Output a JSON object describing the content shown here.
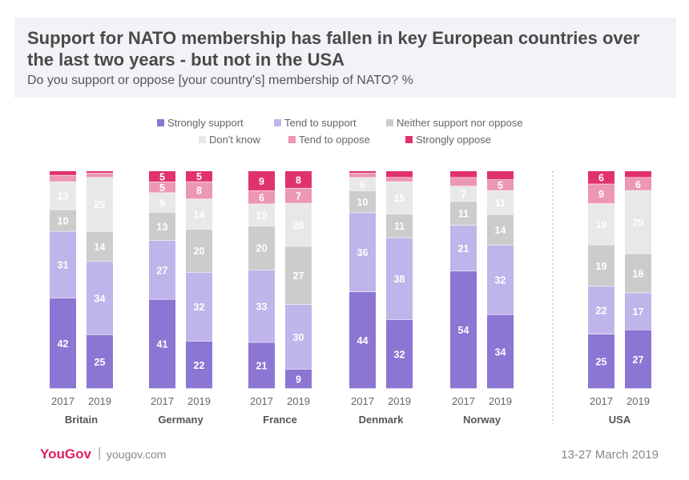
{
  "title": "Support for NATO membership has fallen in key European countries over the last two years - but not in the USA",
  "subtitle": "Do you support or oppose [your country's] membership of NATO? %",
  "legend": [
    {
      "label": "Strongly support",
      "color": "#8b76d4"
    },
    {
      "label": "Tend to support",
      "color": "#c0b5ea"
    },
    {
      "label": "Neither support nor oppose",
      "color": "#cccccc"
    },
    {
      "label": "Don't know",
      "color": "#e8e8e8"
    },
    {
      "label": "Tend to oppose",
      "color": "#ec97b6"
    },
    {
      "label": "Strongly oppose",
      "color": "#e0336b"
    }
  ],
  "footer": {
    "logo": "YouGov",
    "separator": "|",
    "site": "yougov.com",
    "date": "13-27 March 2019"
  },
  "chart_data": {
    "type": "bar",
    "stacked": true,
    "unit": "%",
    "categories": [
      "Strongly support",
      "Tend to support",
      "Neither support nor oppose",
      "Don't know",
      "Tend to oppose",
      "Strongly oppose"
    ],
    "groups": [
      {
        "country": "Britain",
        "bars": [
          {
            "year": "2017",
            "values": [
              42,
              31,
              10,
              13,
              3,
              2
            ]
          },
          {
            "year": "2019",
            "values": [
              25,
              34,
              14,
              25,
              2,
              1
            ]
          }
        ]
      },
      {
        "country": "Germany",
        "bars": [
          {
            "year": "2017",
            "values": [
              41,
              27,
              13,
              9,
              5,
              5
            ]
          },
          {
            "year": "2019",
            "values": [
              22,
              32,
              20,
              14,
              8,
              5
            ]
          }
        ]
      },
      {
        "country": "France",
        "bars": [
          {
            "year": "2017",
            "values": [
              21,
              33,
              20,
              10,
              6,
              9
            ]
          },
          {
            "year": "2019",
            "values": [
              9,
              30,
              27,
              20,
              7,
              8
            ]
          }
        ]
      },
      {
        "country": "Denmark",
        "bars": [
          {
            "year": "2017",
            "values": [
              44,
              36,
              10,
              6,
              2,
              1
            ]
          },
          {
            "year": "2019",
            "values": [
              32,
              38,
              11,
              15,
              2,
              3
            ]
          }
        ]
      },
      {
        "country": "Norway",
        "bars": [
          {
            "year": "2017",
            "values": [
              54,
              21,
              11,
              7,
              4,
              3
            ]
          },
          {
            "year": "2019",
            "values": [
              34,
              32,
              14,
              11,
              5,
              4
            ]
          }
        ]
      },
      {
        "country": "USA",
        "bars": [
          {
            "year": "2017",
            "values": [
              25,
              22,
              19,
              19,
              9,
              6
            ]
          },
          {
            "year": "2019",
            "values": [
              27,
              17,
              18,
              29,
              6,
              3
            ]
          }
        ]
      }
    ],
    "label_min": 5,
    "separator_before": "USA"
  }
}
